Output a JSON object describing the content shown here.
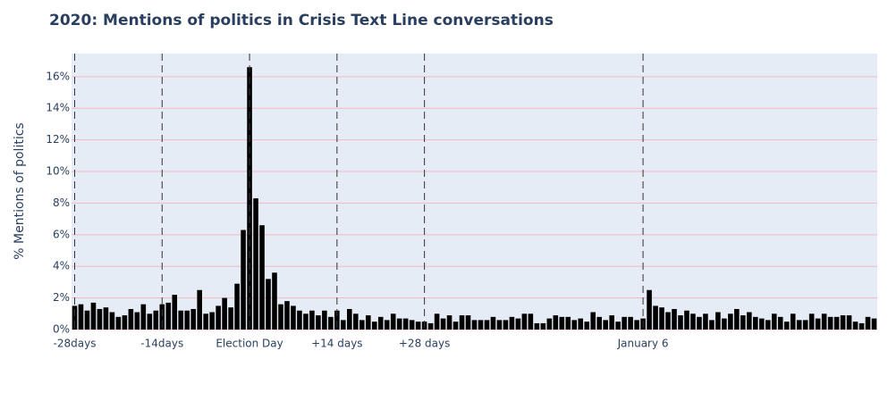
{
  "chart_data": {
    "type": "bar",
    "title": "2020: Mentions of politics in Crisis Text Line conversations",
    "y_label": "% Mentions of politics",
    "color": "#000000",
    "x": [
      -28,
      -27,
      -26,
      -25,
      -24,
      -23,
      -22,
      -21,
      -20,
      -19,
      -18,
      -17,
      -16,
      -15,
      -14,
      -13,
      -12,
      -11,
      -10,
      -9,
      -8,
      -7,
      -6,
      -5,
      -4,
      -3,
      -2,
      -1,
      0,
      1,
      2,
      3,
      4,
      5,
      6,
      7,
      8,
      9,
      10,
      11,
      12,
      13,
      14,
      15,
      16,
      17,
      18,
      19,
      20,
      21,
      22,
      23,
      24,
      25,
      26,
      27,
      28,
      29,
      30,
      31,
      32,
      33,
      34,
      35,
      36,
      37,
      38,
      39,
      40,
      41,
      42,
      43,
      44,
      45,
      46,
      47,
      48,
      49,
      50,
      51,
      52,
      53,
      54,
      55,
      56,
      57,
      58,
      59,
      60,
      61,
      62,
      63,
      64,
      65,
      66,
      67,
      68,
      69,
      70,
      71,
      72,
      73,
      74,
      75,
      76,
      77,
      78,
      79,
      80,
      81,
      82,
      83,
      84,
      85,
      86,
      87,
      88,
      89,
      90,
      91,
      92,
      93,
      94,
      95,
      96,
      97,
      98,
      99,
      100
    ],
    "values": [
      1.5,
      1.6,
      1.2,
      1.7,
      1.3,
      1.4,
      1.1,
      0.8,
      0.9,
      1.3,
      1.1,
      1.6,
      1.0,
      1.2,
      1.6,
      1.7,
      2.2,
      1.2,
      1.2,
      1.3,
      2.5,
      1.0,
      1.1,
      1.5,
      2.0,
      1.4,
      2.9,
      6.3,
      16.6,
      8.3,
      6.6,
      3.2,
      3.6,
      1.6,
      1.8,
      1.5,
      1.2,
      1.0,
      1.2,
      0.9,
      1.2,
      0.8,
      1.2,
      0.6,
      1.3,
      1.0,
      0.6,
      0.9,
      0.5,
      0.8,
      0.6,
      1.0,
      0.7,
      0.7,
      0.6,
      0.5,
      0.5,
      0.4,
      1.0,
      0.7,
      0.9,
      0.5,
      0.9,
      0.9,
      0.6,
      0.6,
      0.6,
      0.8,
      0.6,
      0.6,
      0.8,
      0.7,
      1.0,
      1.0,
      0.4,
      0.4,
      0.7,
      0.9,
      0.8,
      0.8,
      0.6,
      0.7,
      0.5,
      1.1,
      0.8,
      0.6,
      0.9,
      0.5,
      0.8,
      0.8,
      0.6,
      0.7,
      2.5,
      1.5,
      1.4,
      1.1,
      1.3,
      0.9,
      1.2,
      1.0,
      0.8,
      1.0,
      0.6,
      1.1,
      0.7,
      1.0,
      1.3,
      0.9,
      1.1,
      0.8,
      0.7,
      0.6,
      1.0,
      0.8,
      0.5,
      1.0,
      0.6,
      0.6,
      1.0,
      0.7,
      1.0,
      0.8,
      0.8,
      0.9,
      0.9,
      0.5,
      0.4,
      0.8,
      0.7
    ],
    "xlim": [
      -28.5,
      100.5
    ],
    "xticks": [
      {
        "value": -28,
        "label": "-28days"
      },
      {
        "value": -14,
        "label": "-14days"
      },
      {
        "value": 0,
        "label": "Election Day"
      },
      {
        "value": 14,
        "label": "+14 days"
      },
      {
        "value": 28,
        "label": "+28 days"
      },
      {
        "value": 63,
        "label": "January 6"
      }
    ],
    "tick_dashed_lines": true,
    "ylim": [
      0,
      17.46
    ],
    "yticks": [
      {
        "value": 0,
        "label": "0%"
      },
      {
        "value": 2,
        "label": "2%"
      },
      {
        "value": 4,
        "label": "4%"
      },
      {
        "value": 6,
        "label": "6%"
      },
      {
        "value": 8,
        "label": "8%"
      },
      {
        "value": 10,
        "label": "10%"
      },
      {
        "value": 12,
        "label": "12%"
      },
      {
        "value": 14,
        "label": "14%"
      },
      {
        "value": 16,
        "label": "16%"
      }
    ],
    "grid": true
  }
}
